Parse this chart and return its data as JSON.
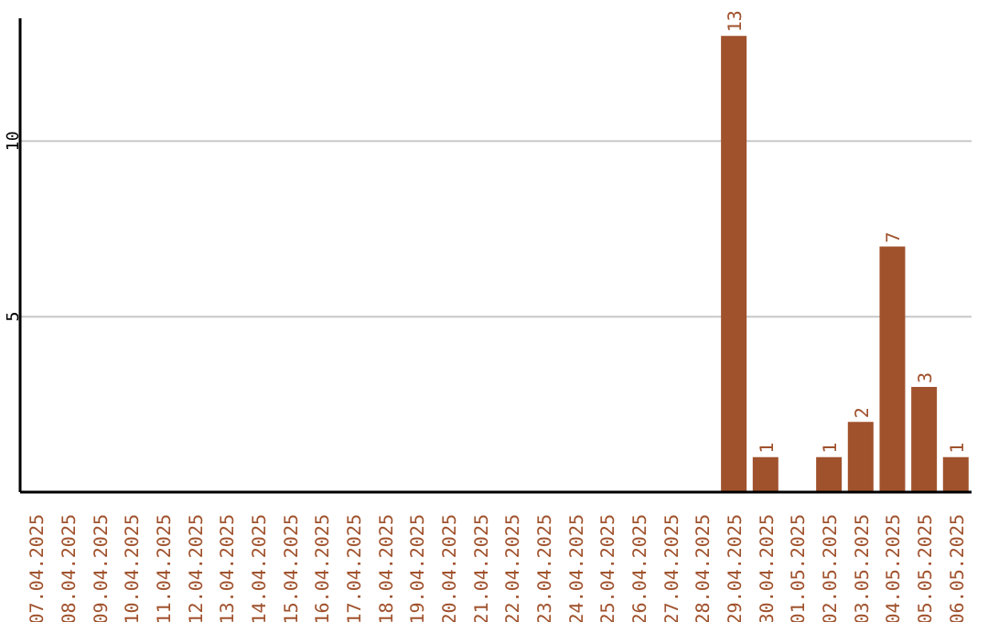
{
  "chart_data": {
    "type": "bar",
    "categories": [
      "07.04.2025",
      "08.04.2025",
      "09.04.2025",
      "10.04.2025",
      "11.04.2025",
      "12.04.2025",
      "13.04.2025",
      "14.04.2025",
      "15.04.2025",
      "16.04.2025",
      "17.04.2025",
      "18.04.2025",
      "19.04.2025",
      "20.04.2025",
      "21.04.2025",
      "22.04.2025",
      "23.04.2025",
      "24.04.2025",
      "25.04.2025",
      "26.04.2025",
      "27.04.2025",
      "28.04.2025",
      "29.04.2025",
      "30.04.2025",
      "01.05.2025",
      "02.05.2025",
      "03.05.2025",
      "04.05.2025",
      "05.05.2025",
      "06.05.2025"
    ],
    "values": [
      0,
      0,
      0,
      0,
      0,
      0,
      0,
      0,
      0,
      0,
      0,
      0,
      0,
      0,
      0,
      0,
      0,
      0,
      0,
      0,
      0,
      0,
      13,
      1,
      0,
      1,
      2,
      7,
      3,
      1
    ],
    "value_labels": [
      null,
      null,
      null,
      null,
      null,
      null,
      null,
      null,
      null,
      null,
      null,
      null,
      null,
      null,
      null,
      null,
      null,
      null,
      null,
      null,
      null,
      null,
      "13",
      "1",
      null,
      "1",
      "2",
      "7",
      "3",
      "1"
    ],
    "color": "#a0522d",
    "ylim": [
      0,
      13.5
    ],
    "yticks": [
      5,
      10
    ],
    "grid": "y"
  }
}
